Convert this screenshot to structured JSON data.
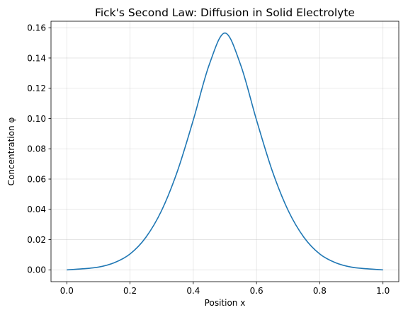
{
  "chart_data": {
    "type": "line",
    "title": "Fick's Second Law: Diffusion in Solid Electrolyte",
    "xlabel": "Position x",
    "ylabel": "Concentration φ",
    "xlim": [
      -0.05,
      1.05
    ],
    "ylim": [
      -0.0078,
      0.1643
    ],
    "grid": true,
    "legend": "none",
    "xticks": [
      0.0,
      0.2,
      0.4,
      0.6,
      0.8,
      1.0
    ],
    "xtick_labels": [
      "0.0",
      "0.2",
      "0.4",
      "0.6",
      "0.8",
      "1.0"
    ],
    "yticks": [
      0.0,
      0.02,
      0.04,
      0.06,
      0.08,
      0.1,
      0.12,
      0.14,
      0.16
    ],
    "ytick_labels": [
      "0.00",
      "0.02",
      "0.04",
      "0.06",
      "0.08",
      "0.10",
      "0.12",
      "0.14",
      "0.16"
    ],
    "series": [
      {
        "color": "#1f77b4",
        "x": [
          0.0,
          0.05,
          0.1,
          0.15,
          0.2,
          0.25,
          0.3,
          0.35,
          0.4,
          0.45,
          0.5,
          0.55,
          0.6,
          0.65,
          0.7,
          0.75,
          0.8,
          0.85,
          0.9,
          0.95,
          1.0
        ],
        "y": [
          0.0,
          0.0007,
          0.0018,
          0.0047,
          0.0105,
          0.0215,
          0.0393,
          0.0653,
          0.099,
          0.1353,
          0.1565,
          0.1353,
          0.099,
          0.0653,
          0.0393,
          0.0215,
          0.0105,
          0.0047,
          0.0018,
          0.0007,
          0.0
        ]
      }
    ]
  }
}
